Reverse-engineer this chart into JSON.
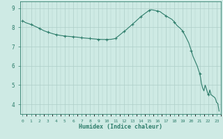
{
  "x_values": [
    0,
    0.33,
    0.67,
    1,
    1.5,
    2,
    2.5,
    3,
    3.5,
    4,
    4.5,
    5,
    5.5,
    6,
    6.5,
    7,
    7.5,
    8,
    8.5,
    9,
    9.5,
    10,
    10.5,
    11,
    11.5,
    12,
    12.3,
    12.6,
    13,
    13.5,
    14,
    14.5,
    15,
    15.2,
    15.5,
    16,
    16.3,
    16.5,
    17,
    17.3,
    17.7,
    18,
    18.3,
    18.7,
    19,
    19.3,
    19.7,
    20,
    20.2,
    20.5,
    20.7,
    21,
    21.1,
    21.2,
    21.35,
    21.5,
    21.65,
    21.8,
    21.9,
    22,
    22.1,
    22.2,
    22.35,
    22.5,
    22.65,
    22.8,
    22.9,
    23,
    23.15,
    23.3
  ],
  "y_values": [
    8.35,
    8.25,
    8.2,
    8.15,
    8.05,
    7.95,
    7.83,
    7.75,
    7.68,
    7.62,
    7.58,
    7.55,
    7.53,
    7.51,
    7.49,
    7.46,
    7.44,
    7.42,
    7.4,
    7.38,
    7.37,
    7.37,
    7.38,
    7.42,
    7.6,
    7.78,
    7.88,
    8.0,
    8.15,
    8.35,
    8.55,
    8.72,
    8.88,
    8.92,
    8.9,
    8.85,
    8.82,
    8.75,
    8.6,
    8.52,
    8.42,
    8.28,
    8.1,
    7.95,
    7.8,
    7.55,
    7.2,
    6.8,
    6.5,
    6.2,
    6.0,
    5.6,
    5.4,
    5.1,
    4.85,
    4.7,
    5.0,
    4.8,
    4.65,
    4.5,
    4.55,
    4.75,
    4.5,
    4.45,
    4.4,
    4.35,
    4.25,
    4.1,
    4.05,
    3.65
  ],
  "marker_x": [
    0,
    1,
    2,
    3,
    4,
    5,
    6,
    7,
    8,
    9,
    10,
    11,
    12,
    13,
    14,
    15,
    16,
    17,
    18,
    19,
    20,
    21,
    22
  ],
  "marker_y": [
    8.35,
    8.15,
    7.95,
    7.75,
    7.62,
    7.55,
    7.51,
    7.46,
    7.42,
    7.38,
    7.37,
    7.42,
    7.78,
    8.15,
    8.55,
    8.88,
    8.85,
    8.6,
    8.28,
    7.8,
    6.8,
    5.6,
    4.5
  ],
  "line_color": "#2e7d6b",
  "marker_color": "#2e7d6b",
  "bg_color": "#ceeae4",
  "grid_color": "#aecec8",
  "axis_color": "#2e7d6b",
  "tick_color": "#2e7d6b",
  "xlabel": "Humidex (Indice chaleur)",
  "xlim": [
    -0.3,
    23.5
  ],
  "ylim": [
    3.5,
    9.35
  ],
  "yticks": [
    4,
    5,
    6,
    7,
    8,
    9
  ],
  "xticks": [
    0,
    1,
    2,
    3,
    4,
    5,
    6,
    7,
    8,
    9,
    10,
    11,
    12,
    13,
    14,
    15,
    16,
    17,
    18,
    19,
    20,
    21,
    22,
    23
  ],
  "xtick_labels": [
    "0",
    "1",
    "2",
    "3",
    "4",
    "5",
    "6",
    "7",
    "8",
    "9",
    "10",
    "11",
    "12",
    "13",
    "14",
    "15",
    "16",
    "17",
    "18",
    "19",
    "20",
    "21",
    "22",
    "23"
  ]
}
